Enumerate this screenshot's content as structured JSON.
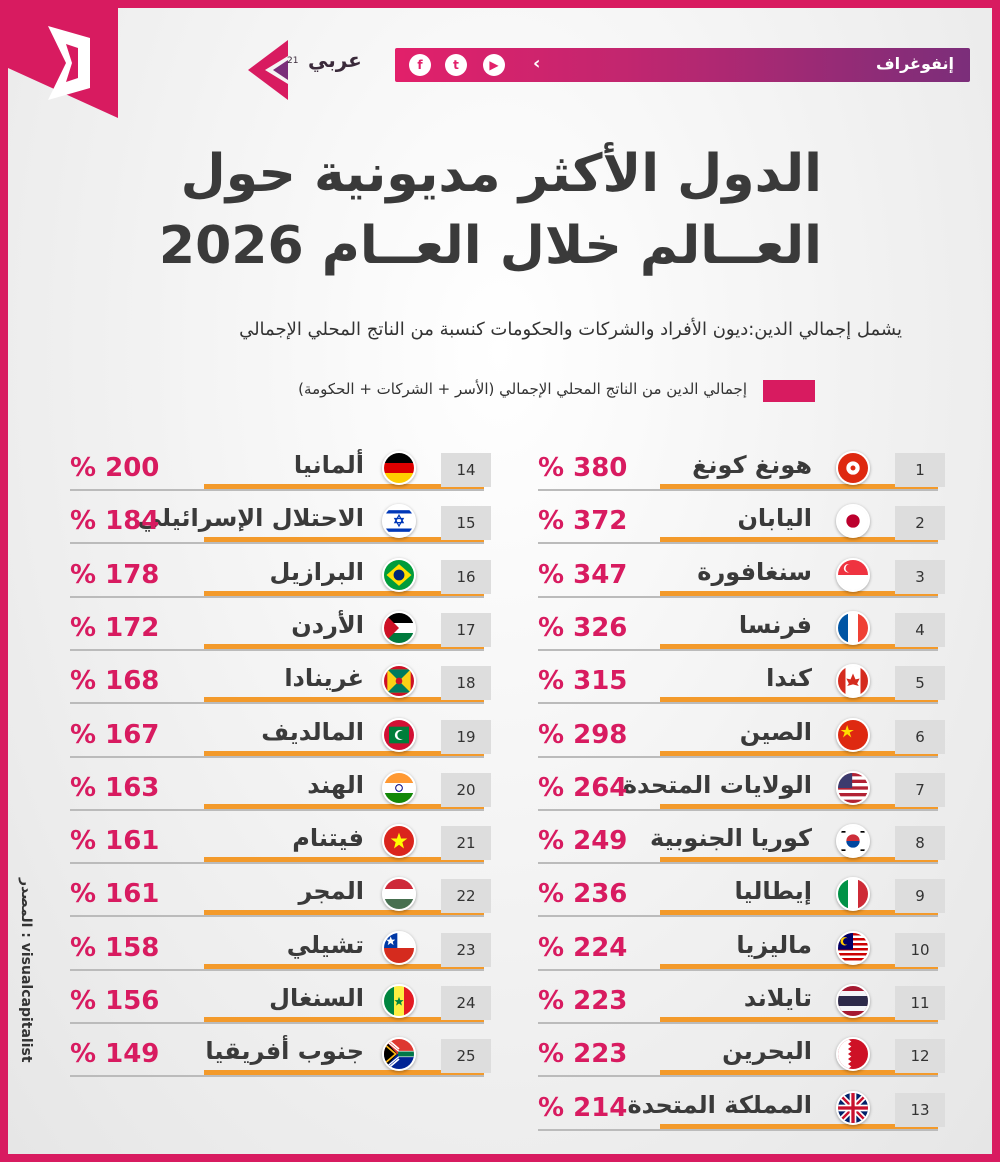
{
  "header": {
    "section_label": "إنفوغراف",
    "brand_name": "عربي",
    "brand_sup": "21",
    "social": [
      "f",
      "t",
      "▶"
    ]
  },
  "colors": {
    "accent": "#d81b60",
    "underline": "#f39a2b",
    "purple": "#7b2e7a"
  },
  "chart_data": {
    "type": "bar",
    "title": "الدول الأكثر مديونية حول العــالم خلال العــام 2026",
    "title_line1": "الدول الأكثر مديونية حول",
    "title_line2": "العــالم خلال العــام 2026",
    "subtitle": "يشمل إجمالي الدين:ديون الأفراد والشركات والحكومات كنسبة من الناتج المحلي الإجمالي",
    "legend": "إجمالي الدين  من الناتج المحلي الإجمالي (الأسر + الشركات + الحكومة)",
    "unit": "%",
    "source": "المصدر : visualcapitalist",
    "rows": [
      {
        "rank": "1",
        "country": "هونغ كونغ",
        "value": 380,
        "flag": "hong-kong"
      },
      {
        "rank": "2",
        "country": "اليابان",
        "value": 372,
        "flag": "japan"
      },
      {
        "rank": "3",
        "country": "سنغافورة",
        "value": 347,
        "flag": "singapore"
      },
      {
        "rank": "4",
        "country": "فرنسا",
        "value": 326,
        "flag": "france"
      },
      {
        "rank": "5",
        "country": "كندا",
        "value": 315,
        "flag": "canada"
      },
      {
        "rank": "6",
        "country": "الصين",
        "value": 298,
        "flag": "china"
      },
      {
        "rank": "7",
        "country": "الولايات المتحدة",
        "value": 264,
        "flag": "usa"
      },
      {
        "rank": "8",
        "country": "كوريا الجنوبية",
        "value": 249,
        "flag": "south-korea"
      },
      {
        "rank": "9",
        "country": "إيطاليا",
        "value": 236,
        "flag": "italy"
      },
      {
        "rank": "10",
        "country": "ماليزيا",
        "value": 224,
        "flag": "malaysia"
      },
      {
        "rank": "11",
        "country": "تايلاند",
        "value": 223,
        "flag": "thailand"
      },
      {
        "rank": "12",
        "country": "البحرين",
        "value": 223,
        "flag": "bahrain"
      },
      {
        "rank": "13",
        "country": "المملكة المتحدة",
        "value": 214,
        "flag": "uk"
      },
      {
        "rank": "14",
        "country": "ألمانيا",
        "value": 200,
        "flag": "germany"
      },
      {
        "rank": "15",
        "country": "الاحتلال الإسرائيلي",
        "value": 184,
        "flag": "israel"
      },
      {
        "rank": "16",
        "country": "البرازيل",
        "value": 178,
        "flag": "brazil"
      },
      {
        "rank": "17",
        "country": "الأردن",
        "value": 172,
        "flag": "jordan"
      },
      {
        "rank": "18",
        "country": "غرينادا",
        "value": 168,
        "flag": "grenada"
      },
      {
        "rank": "19",
        "country": "المالديف",
        "value": 167,
        "flag": "maldives"
      },
      {
        "rank": "20",
        "country": "الهند",
        "value": 163,
        "flag": "india"
      },
      {
        "rank": "21",
        "country": "فيتنام",
        "value": 161,
        "flag": "vietnam"
      },
      {
        "rank": "22",
        "country": "المجر",
        "value": 161,
        "flag": "hungary"
      },
      {
        "rank": "23",
        "country": "تشيلي",
        "value": 158,
        "flag": "chile"
      },
      {
        "rank": "24",
        "country": "السنغال",
        "value": 156,
        "flag": "senegal"
      },
      {
        "rank": "25",
        "country": "جنوب أفريقيا",
        "value": 149,
        "flag": "south-africa"
      }
    ]
  }
}
